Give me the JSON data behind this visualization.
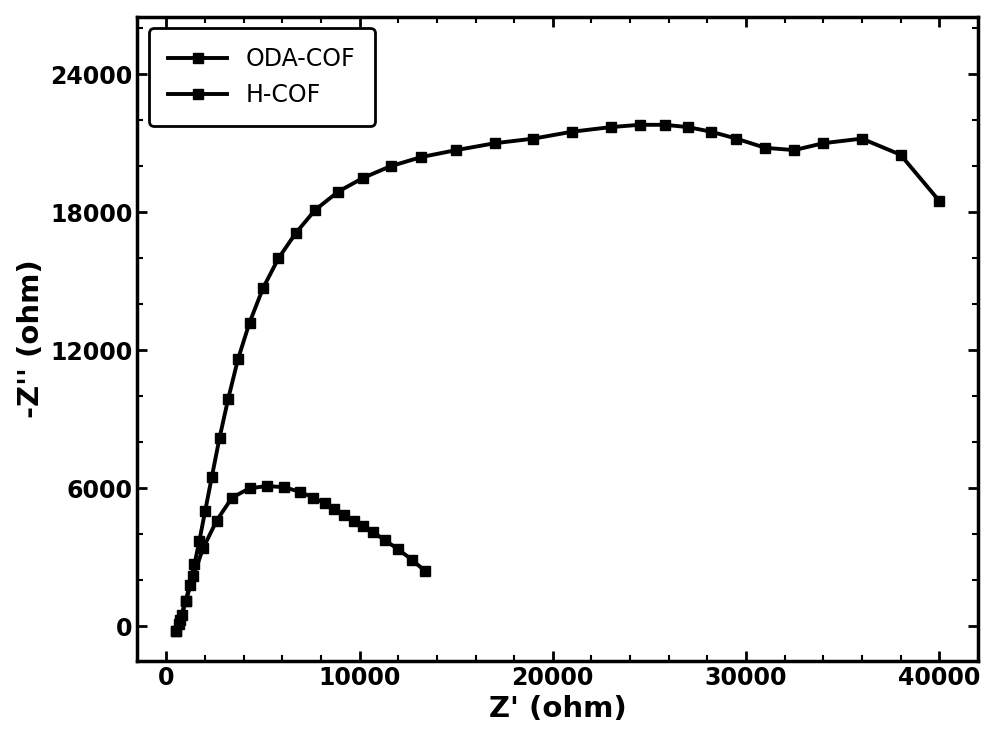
{
  "title": "",
  "xlabel": "Z' (ohm)",
  "ylabel": "-Z'' (ohm)",
  "xlim": [
    -1500,
    42000
  ],
  "ylim": [
    -1500,
    26500
  ],
  "xticks": [
    0,
    10000,
    20000,
    30000,
    40000
  ],
  "yticks": [
    0,
    6000,
    12000,
    18000,
    24000
  ],
  "background_color": "#ffffff",
  "line_color": "#000000",
  "linewidth": 2.8,
  "marker": "s",
  "markersize": 7,
  "oda_cof_x": [
    500,
    650,
    800,
    1000,
    1200,
    1450,
    1700,
    2000,
    2350,
    2750,
    3200,
    3700,
    4300,
    5000,
    5800,
    6700,
    7700,
    8900,
    10200,
    11600,
    13200,
    15000,
    17000,
    19000,
    21000,
    23000,
    24500,
    25800,
    27000,
    28200,
    29500,
    31000,
    32500,
    34000,
    36000,
    38000,
    40000
  ],
  "oda_cof_y": [
    -200,
    100,
    500,
    1100,
    1800,
    2700,
    3700,
    5000,
    6500,
    8200,
    9900,
    11600,
    13200,
    14700,
    16000,
    17100,
    18100,
    18900,
    19500,
    20000,
    20400,
    20700,
    21000,
    21200,
    21500,
    21700,
    21800,
    21800,
    21700,
    21500,
    21200,
    20800,
    20700,
    21000,
    21200,
    20500,
    18500
  ],
  "h_cof_x": [
    500,
    700,
    1000,
    1400,
    1900,
    2600,
    3400,
    4300,
    5200,
    6100,
    6900,
    7600,
    8200,
    8700,
    9200,
    9700,
    10200,
    10700,
    11300,
    12000,
    12700,
    13400
  ],
  "h_cof_y": [
    -200,
    300,
    1100,
    2200,
    3400,
    4600,
    5600,
    6000,
    6100,
    6050,
    5850,
    5600,
    5350,
    5100,
    4850,
    4600,
    4350,
    4100,
    3750,
    3350,
    2900,
    2400
  ],
  "legend_labels": [
    "ODA-COF",
    "H-COF"
  ],
  "legend_fontsize": 17,
  "axis_label_fontsize": 21,
  "tick_fontsize": 17,
  "minor_ticks_x": 5,
  "minor_ticks_y": 3
}
